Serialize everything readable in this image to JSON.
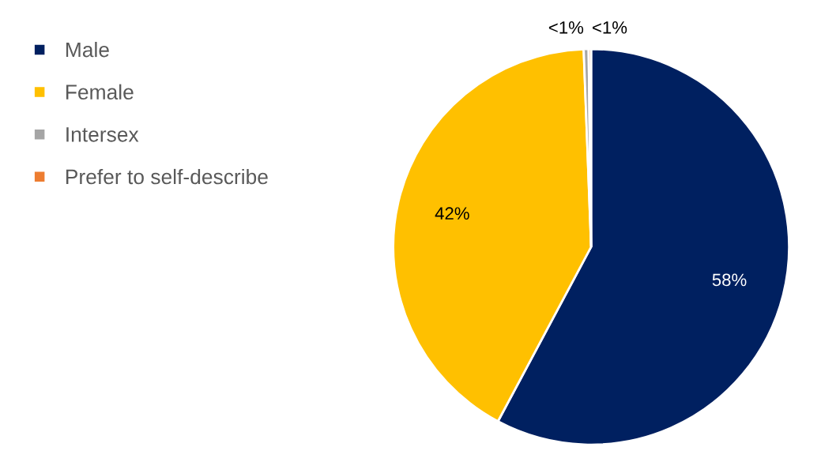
{
  "chart_data": {
    "type": "pie",
    "categories": [
      "Male",
      "Female",
      "Intersex",
      "Prefer to self-describe"
    ],
    "values": [
      57.8,
      41.6,
      0.4,
      0.2
    ],
    "colors": [
      "#002060",
      "#ffc000",
      "#a5a5a5",
      "#ed7d31"
    ],
    "value_labels": [
      "58%",
      "42%",
      "<1%",
      "<1%"
    ],
    "legend": "left"
  }
}
